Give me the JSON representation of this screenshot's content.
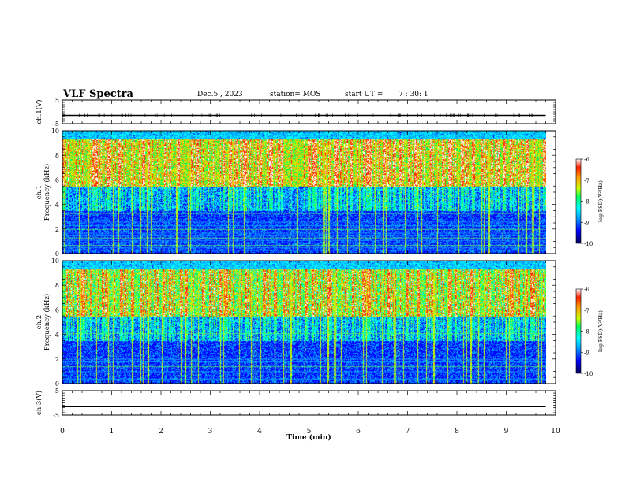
{
  "header": {
    "title": "VLF Spectra",
    "date": "Dec.5 , 2023",
    "station": "station= MOS",
    "start_ut_label": "start UT =",
    "start_ut_value": "7 : 30: 1"
  },
  "chart_data": [
    {
      "type": "line",
      "panel": "ch.1 waveform",
      "ylabel": "ch.1(V)",
      "ylim": [
        -5,
        5
      ],
      "yticks": [
        "5",
        "-5"
      ],
      "xlim": [
        0,
        10
      ],
      "series": [
        {
          "x": [
            0,
            9.8
          ],
          "values": [
            -1.5,
            -1.5
          ]
        }
      ]
    },
    {
      "type": "heatmap",
      "panel": "ch.1 spectrogram",
      "ylabel": "ch.1 Frequency (kHz)",
      "ylim": [
        0,
        10
      ],
      "yticks": [
        "0",
        "2",
        "4",
        "6",
        "8",
        "10"
      ],
      "xlim": [
        0,
        10
      ],
      "data_end_min": 9.8,
      "colorbar": {
        "label": "log(PSD)(V²/Hz)",
        "range": [
          -10,
          -6
        ],
        "ticks": [
          "-6",
          "-7",
          "-8",
          "-9",
          "-10"
        ]
      }
    },
    {
      "type": "heatmap",
      "panel": "ch.2 spectrogram",
      "ylabel": "ch.2 Frequency (kHz)",
      "ylim": [
        0,
        10
      ],
      "yticks": [
        "0",
        "2",
        "4",
        "6",
        "8",
        "10"
      ],
      "xlim": [
        0,
        10
      ],
      "data_end_min": 9.8,
      "colorbar": {
        "label": "log(PSD)(V²/Hz)",
        "range": [
          -10,
          -6
        ],
        "ticks": [
          "-6",
          "-7",
          "-8",
          "-9",
          "-10"
        ]
      }
    },
    {
      "type": "line",
      "panel": "ch.3 waveform",
      "ylabel": "ch.3(V)",
      "ylim": [
        -5,
        5
      ],
      "yticks": [
        "5",
        "-5"
      ],
      "xlabel": "Time (min)",
      "xlim": [
        0,
        10
      ],
      "xticks": [
        "0",
        "1",
        "2",
        "3",
        "4",
        "5",
        "6",
        "7",
        "8",
        "9",
        "10"
      ],
      "series": [
        {
          "x": [
            0,
            9.8
          ],
          "values": [
            -1.5,
            -1.5
          ]
        }
      ]
    }
  ],
  "colors": {
    "scale": [
      "#000050",
      "#0000ff",
      "#00a0ff",
      "#00ffff",
      "#00ff60",
      "#c8ff00",
      "#ffa000",
      "#ff2000",
      "#ffffff"
    ]
  }
}
